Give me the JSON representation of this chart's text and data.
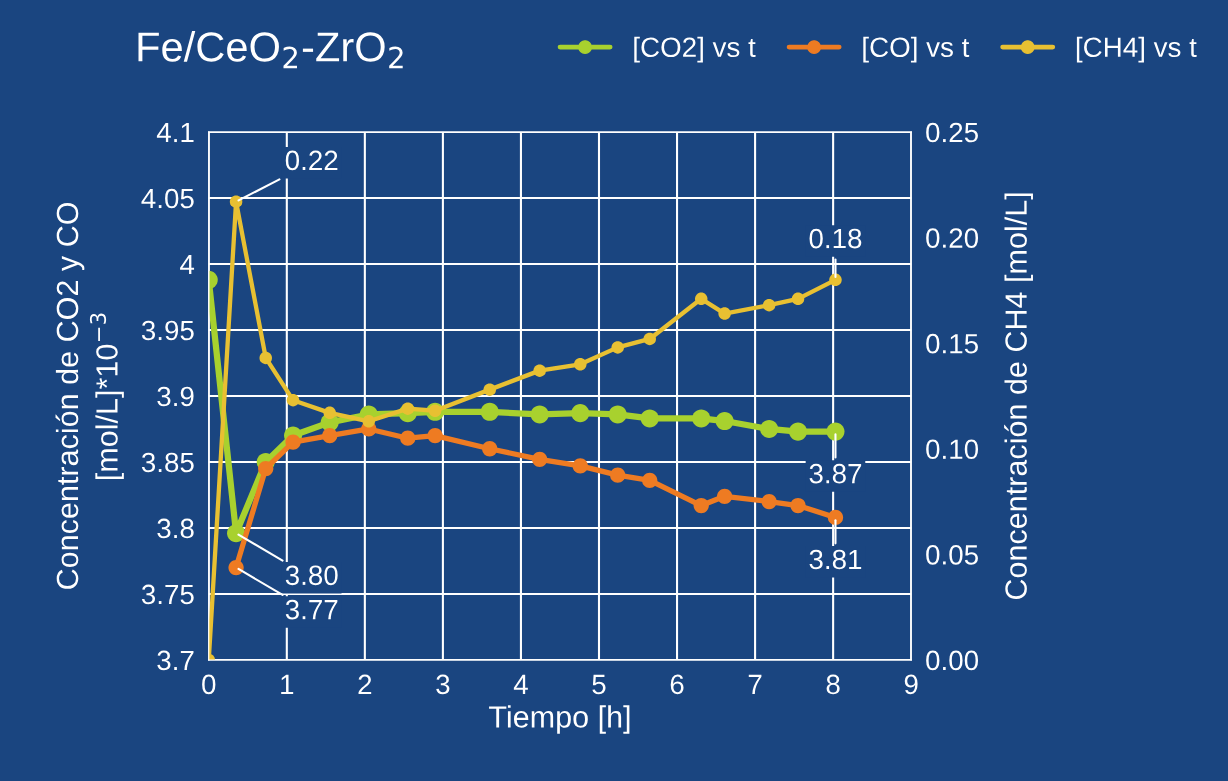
{
  "chart_data": {
    "type": "line",
    "title": "Fe/CeO$_{2}$-ZrO$_{2}$",
    "xlabel": "Tiempo [h]",
    "ylabel": "Concentración de CO2 y CO\n[mol/L]*10$^{−3}$",
    "y2label": "Concentración de CH4 [mol/L]",
    "xlim": [
      0,
      9
    ],
    "xticks": [
      0,
      1,
      2,
      3,
      4,
      5,
      6,
      7,
      8,
      9
    ],
    "ylim": [
      3.7,
      4.1
    ],
    "yticks": [
      3.7,
      3.75,
      3.8,
      3.85,
      3.9,
      3.95,
      4,
      4.05,
      4.1
    ],
    "y2lim": [
      0,
      0.25
    ],
    "y2ticks": [
      {
        "value": 0,
        "label": "0.00"
      },
      {
        "value": 0.05,
        "label": "0.05"
      },
      {
        "value": 0.1,
        "label": "0.10"
      },
      {
        "value": 0.15,
        "label": "0.15"
      },
      {
        "value": 0.2,
        "label": "0.20"
      },
      {
        "value": 0.25,
        "label": "0.25"
      }
    ],
    "grid": true,
    "legend": "top right",
    "marker": "circle",
    "line_style": "solid",
    "series": [
      {
        "name": "[CO2] vs t",
        "color": "#a8d12e",
        "x": [
          0,
          0.35,
          0.73,
          1.08,
          1.55,
          2.05,
          2.55,
          2.9,
          3.6,
          4.24,
          4.76,
          5.24,
          5.65,
          6.31,
          6.61,
          7.18,
          7.55,
          8.03
        ],
        "values": [
          3.988,
          3.796,
          3.85,
          3.87,
          3.88,
          3.886,
          3.887,
          3.888,
          3.888,
          3.886,
          3.887,
          3.886,
          3.883,
          3.883,
          3.881,
          3.875,
          3.873,
          3.873
        ],
        "value_labels": [
          null,
          "3.80",
          null,
          null,
          null,
          null,
          null,
          null,
          null,
          null,
          null,
          null,
          null,
          null,
          null,
          null,
          null,
          "3.87"
        ]
      },
      {
        "name": "[CO] vs t",
        "color": "#ee7b22",
        "x": [
          0.35,
          0.73,
          1.08,
          1.55,
          2.05,
          2.55,
          2.9,
          3.6,
          4.24,
          4.76,
          5.24,
          5.65,
          6.31,
          6.61,
          7.18,
          7.55,
          8.03
        ],
        "values": [
          3.77,
          3.845,
          3.865,
          3.87,
          3.875,
          3.868,
          3.87,
          3.86,
          3.852,
          3.847,
          3.84,
          3.836,
          3.817,
          3.824,
          3.82,
          3.817,
          3.808
        ],
        "value_labels": [
          "3.77",
          null,
          null,
          null,
          null,
          null,
          null,
          null,
          null,
          null,
          null,
          null,
          null,
          null,
          null,
          null,
          "3.81"
        ]
      },
      {
        "name": "[CH4] vs t",
        "color": "#e8c032",
        "axis": "y2",
        "x": [
          0,
          0.35,
          0.73,
          1.08,
          1.55,
          2.05,
          2.55,
          2.9,
          3.6,
          4.24,
          4.76,
          5.24,
          5.65,
          6.31,
          6.61,
          7.18,
          7.55,
          8.03
        ],
        "values": [
          0,
          0.217,
          0.143,
          0.123,
          0.117,
          0.113,
          0.119,
          0.118,
          0.128,
          0.137,
          0.14,
          0.148,
          0.152,
          0.171,
          0.164,
          0.168,
          0.171,
          0.18
        ],
        "value_labels": [
          null,
          "0.22",
          null,
          null,
          null,
          null,
          null,
          null,
          null,
          null,
          null,
          null,
          null,
          null,
          null,
          null,
          null,
          "0.18"
        ]
      }
    ]
  }
}
